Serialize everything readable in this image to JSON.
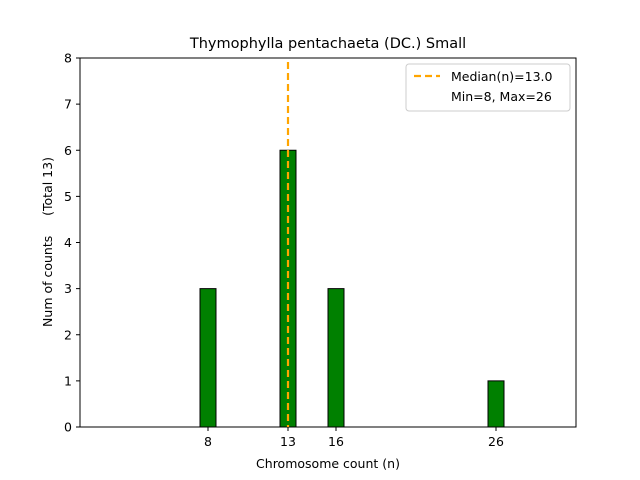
{
  "chart_data": {
    "type": "bar",
    "title": "Thymophylla pentachaeta (DC.) Small",
    "xlabel": "Chromosome count (n)",
    "ylabel": "Num of counts     (Total 13)",
    "x": [
      8,
      13,
      16,
      26
    ],
    "values": [
      3,
      6,
      3,
      1
    ],
    "bar_color": "#008000",
    "bar_edge_color": "#000000",
    "xlim": [
      0,
      31
    ],
    "ylim": [
      0,
      8
    ],
    "xticks": [
      8,
      13,
      16,
      26
    ],
    "yticks": [
      0,
      1,
      2,
      3,
      4,
      5,
      6,
      7,
      8
    ],
    "median": 13.0,
    "median_color": "#FFA500",
    "legend": {
      "position": "top-right",
      "entries": [
        "Median(n)=13.0",
        "Min=8, Max=26"
      ]
    }
  }
}
